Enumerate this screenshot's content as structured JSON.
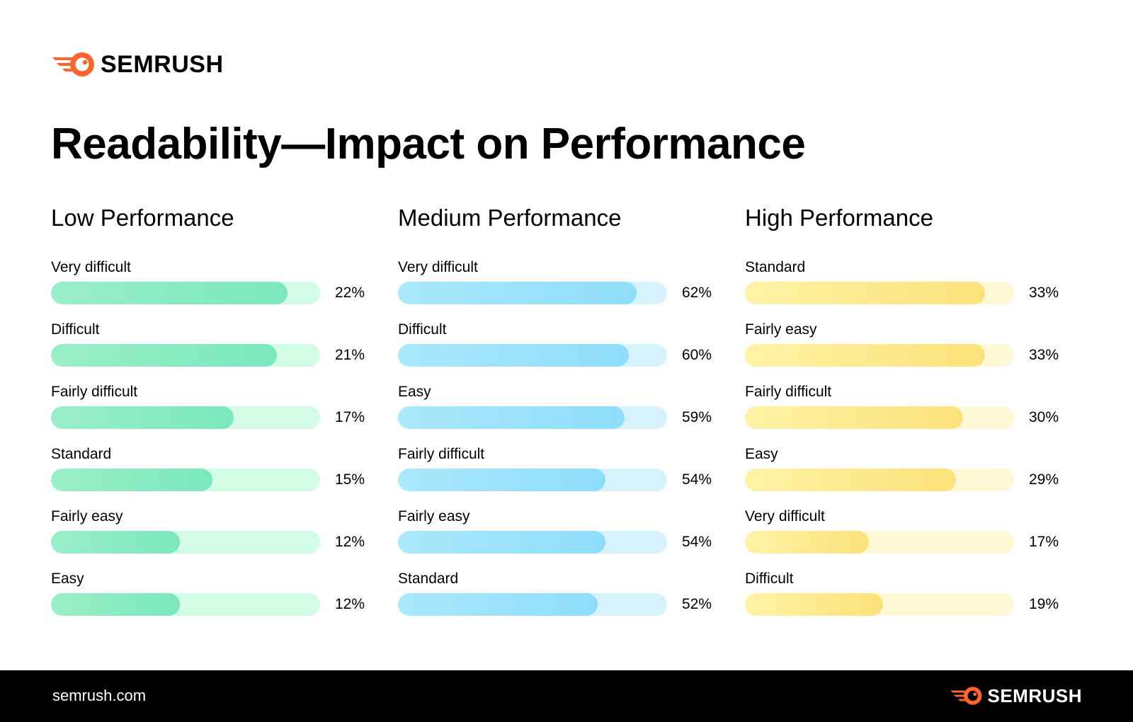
{
  "brand": {
    "name": "SEMRUSH",
    "url": "semrush.com",
    "logo_icon": "semrush-flame-logo",
    "accent_color": "#FF642D"
  },
  "title": "Readability—Impact on Performance",
  "colors": {
    "low": {
      "fill_from": "#9BEEC9",
      "fill_to": "#7AE8BD",
      "track": "#D3FCE6"
    },
    "medium": {
      "fill_from": "#ABE8FB",
      "fill_to": "#8EDDFB",
      "track": "#D6F3FD"
    },
    "high": {
      "fill_from": "#FFF3A6",
      "fill_to": "#FBE27A",
      "track": "#FFF8D6"
    }
  },
  "chart_data": [
    {
      "type": "bar",
      "title": "Low Performance",
      "xlim": [
        0,
        25
      ],
      "categories": [
        "Very difficult",
        "Difficult",
        "Fairly difficult",
        "Standard",
        "Fairly easy",
        "Easy"
      ],
      "values": [
        22,
        21,
        17,
        15,
        12,
        12
      ],
      "labels": [
        "22%",
        "21%",
        "17%",
        "15%",
        "12%",
        "12%"
      ],
      "color_key": "low"
    },
    {
      "type": "bar",
      "title": "Medium Performance",
      "xlim": [
        0,
        70
      ],
      "categories": [
        "Very difficult",
        "Difficult",
        "Easy",
        "Fairly difficult",
        "Fairly easy",
        "Standard"
      ],
      "values": [
        62,
        60,
        59,
        54,
        54,
        52
      ],
      "labels": [
        "62%",
        "60%",
        "59%",
        "54%",
        "54%",
        "52%"
      ],
      "color_key": "medium"
    },
    {
      "type": "bar",
      "title": "High Performance",
      "xlim": [
        0,
        37
      ],
      "categories": [
        "Standard",
        "Fairly easy",
        "Fairly difficult",
        "Easy",
        "Very difficult",
        "Difficult"
      ],
      "values": [
        33,
        33,
        30,
        29,
        17,
        19
      ],
      "labels": [
        "33%",
        "33%",
        "30%",
        "29%",
        "17%",
        "19%"
      ],
      "color_key": "high"
    }
  ]
}
